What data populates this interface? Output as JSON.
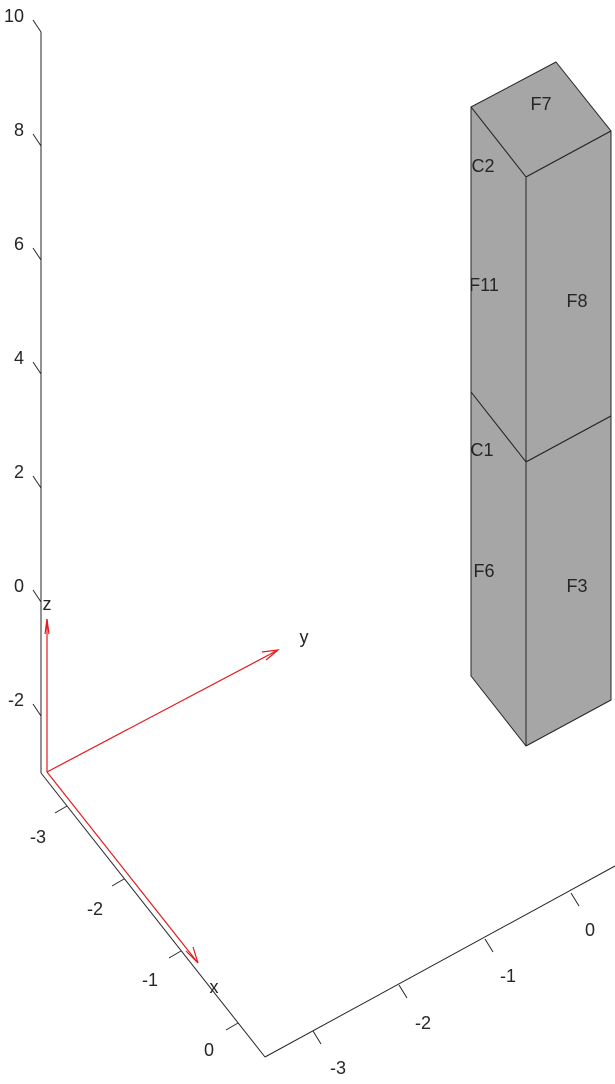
{
  "axes": {
    "z": {
      "ticks": [
        "10",
        "8",
        "6",
        "4",
        "2",
        "0",
        "-2"
      ]
    },
    "x": {
      "ticks": [
        "-3",
        "-2",
        "-1",
        "0"
      ]
    },
    "y": {
      "ticks": [
        "-3",
        "-2",
        "-1",
        "0"
      ]
    }
  },
  "triad": {
    "color": "#e41a1c",
    "x_label": "x",
    "y_label": "y",
    "z_label": "z"
  },
  "geometry": {
    "face_color": "#a6a6a6",
    "face_labels": {
      "F7": "F7",
      "C2": "C2",
      "F11": "F11",
      "F8": "F8",
      "C1": "C1",
      "F6": "F6",
      "F3": "F3"
    }
  }
}
